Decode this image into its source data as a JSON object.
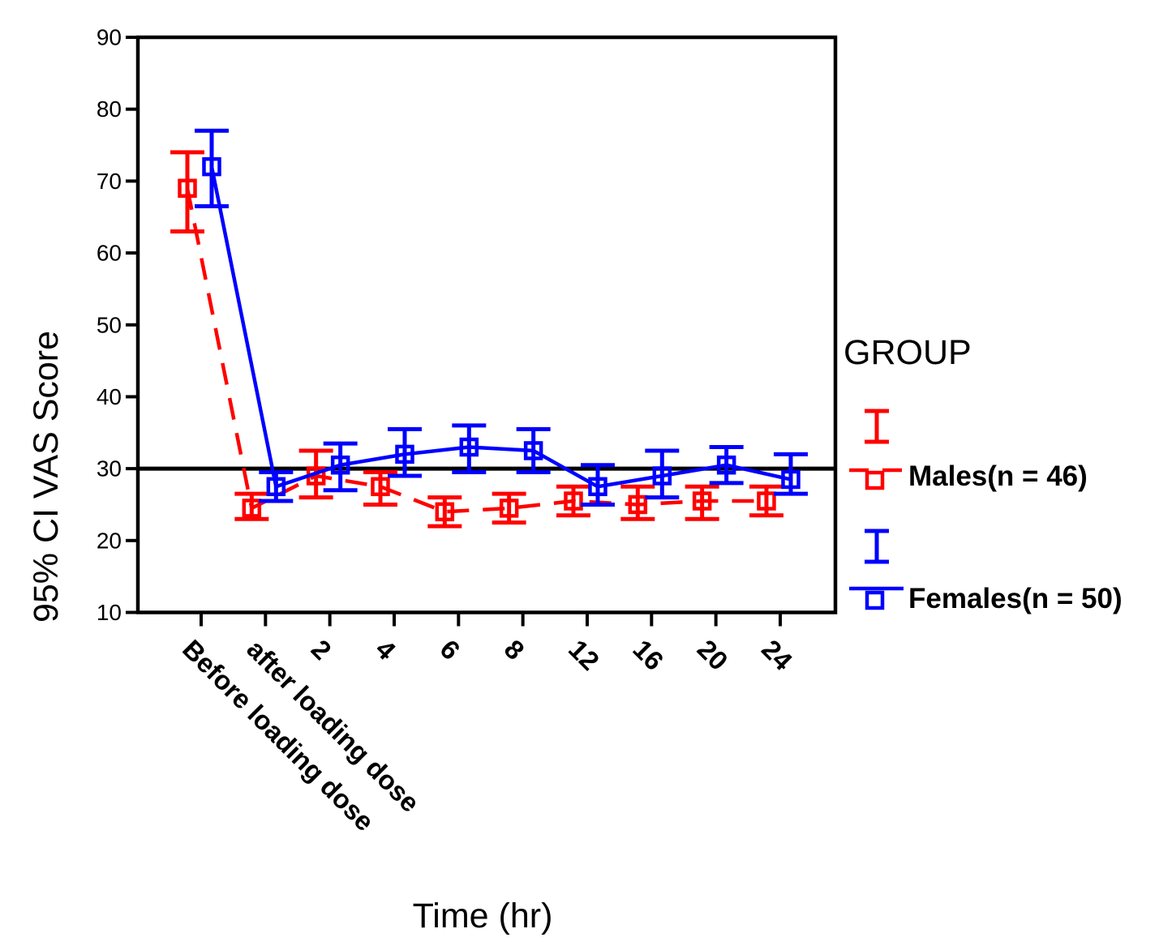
{
  "figure": {
    "background": "#ffffff",
    "frame_color": "#000000",
    "reference_line_color": "#000000"
  },
  "chart_data": {
    "type": "line",
    "subtype": "error-bar-line-chart",
    "title": "",
    "xlabel": "Time (hr)",
    "ylabel": "95% CI VAS Score",
    "categories": [
      "Before loading dose",
      "after loading dose",
      "2",
      "4",
      "6",
      "8",
      "12",
      "16",
      "20",
      "24"
    ],
    "ylim": [
      10,
      90
    ],
    "yticks": [
      10,
      20,
      30,
      40,
      50,
      60,
      70,
      80,
      90
    ],
    "grid": false,
    "reference_line_y": 30,
    "legend": {
      "title": "GROUP",
      "position": "right",
      "entries": [
        "Males(n = 46)",
        "Females(n = 50)"
      ]
    },
    "series": [
      {
        "name": "Males(n = 46)",
        "color": "#ff0000",
        "line_style": "dashed",
        "marker": "open-square",
        "values": [
          69,
          24.5,
          29,
          27.5,
          24,
          24.5,
          25.5,
          25,
          25.5,
          25.5
        ],
        "ci_low": [
          63,
          23,
          26,
          25,
          22,
          22.5,
          23.5,
          23,
          23,
          23.5
        ],
        "ci_high": [
          74,
          26.5,
          32.5,
          29.5,
          26,
          26.5,
          27.5,
          27.5,
          27.5,
          27.5
        ]
      },
      {
        "name": "Females(n = 50)",
        "color": "#0000ff",
        "line_style": "solid",
        "marker": "open-square",
        "values": [
          72,
          27.5,
          30.5,
          32,
          33,
          32.5,
          27.5,
          29,
          30.5,
          28.5
        ],
        "ci_low": [
          66.5,
          25.5,
          27,
          29,
          29.5,
          29.5,
          25,
          26,
          28,
          26.5
        ],
        "ci_high": [
          77,
          29.5,
          33.5,
          35.5,
          36,
          35.5,
          30.5,
          32.5,
          33,
          32
        ]
      }
    ]
  }
}
